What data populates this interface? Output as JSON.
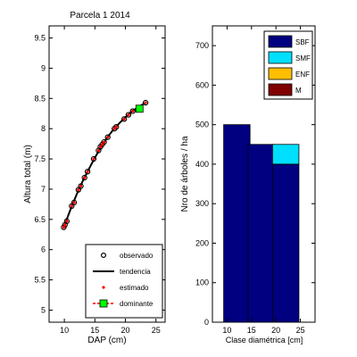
{
  "chart_data": [
    {
      "type": "scatter",
      "title": "Parcela 1 2014",
      "xlabel": "DAP (cm)",
      "ylabel": "Altura total (m)",
      "xlim": [
        7.5,
        26.5
      ],
      "ylim": [
        4.8,
        9.7
      ],
      "xticks": [
        10,
        15,
        20,
        25
      ],
      "yticks": [
        5,
        5.5,
        6,
        6.5,
        7,
        7.5,
        8,
        8.5,
        9,
        9.5
      ],
      "grid": false,
      "legend_position": "bottom-right",
      "legend": {
        "observado": "observado",
        "tendencia": "tendencia",
        "estimado": "estimado",
        "dominante": "dominante"
      },
      "colors": {
        "observed": "#000000",
        "trend": "#000000",
        "estimated": "#ff0000",
        "dominant": "#00ff00",
        "dominant_line": "#ff0000"
      },
      "series": [
        {
          "name": "observado",
          "points": [
            [
              9.9,
              6.37
            ],
            [
              10.1,
              6.41
            ],
            [
              10.4,
              6.47
            ],
            [
              11.2,
              6.72
            ],
            [
              11.6,
              6.78
            ],
            [
              12.3,
              6.99
            ],
            [
              12.7,
              7.05
            ],
            [
              13.3,
              7.19
            ],
            [
              13.8,
              7.29
            ],
            [
              14.8,
              7.5
            ],
            [
              15.6,
              7.64
            ],
            [
              15.9,
              7.7
            ],
            [
              16.2,
              7.74
            ],
            [
              16.5,
              7.78
            ],
            [
              17.1,
              7.86
            ],
            [
              18.2,
              8.0
            ],
            [
              18.5,
              8.03
            ],
            [
              19.8,
              8.16
            ],
            [
              20.5,
              8.23
            ],
            [
              21.2,
              8.29
            ],
            [
              23.3,
              8.43
            ]
          ]
        },
        {
          "name": "tendencia",
          "points": [
            [
              9.9,
              6.37
            ],
            [
              11,
              6.66
            ],
            [
              12,
              6.91
            ],
            [
              13,
              7.13
            ],
            [
              14,
              7.33
            ],
            [
              15,
              7.52
            ],
            [
              16,
              7.7
            ],
            [
              17,
              7.85
            ],
            [
              18,
              7.98
            ],
            [
              19,
              8.09
            ],
            [
              20,
              8.19
            ],
            [
              21,
              8.28
            ],
            [
              22,
              8.35
            ],
            [
              23.3,
              8.43
            ]
          ]
        },
        {
          "name": "estimado",
          "points": [
            [
              9.9,
              6.37
            ],
            [
              10.1,
              6.41
            ],
            [
              10.4,
              6.47
            ],
            [
              11.2,
              6.72
            ],
            [
              11.6,
              6.78
            ],
            [
              12.3,
              6.99
            ],
            [
              12.7,
              7.05
            ],
            [
              13.3,
              7.19
            ],
            [
              13.8,
              7.29
            ],
            [
              14.8,
              7.5
            ],
            [
              15.6,
              7.64
            ],
            [
              15.9,
              7.7
            ],
            [
              16.2,
              7.74
            ],
            [
              16.5,
              7.78
            ],
            [
              17.1,
              7.86
            ],
            [
              18.2,
              8.0
            ],
            [
              18.5,
              8.03
            ],
            [
              19.8,
              8.16
            ],
            [
              20.5,
              8.23
            ],
            [
              21.2,
              8.29
            ],
            [
              23.3,
              8.43
            ]
          ]
        },
        {
          "name": "dominante",
          "points": [
            [
              22.3,
              8.33
            ]
          ]
        }
      ]
    },
    {
      "type": "bar",
      "stacked": true,
      "xlabel": "Clase diamétrica [cm]",
      "ylabel": "Nro de árboles / ha",
      "xlim": [
        7,
        28
      ],
      "ylim": [
        0,
        750
      ],
      "xticks": [
        10,
        15,
        20,
        25
      ],
      "yticks": [
        0,
        100,
        200,
        300,
        400,
        500,
        600,
        700
      ],
      "grid": false,
      "legend_position": "top-right",
      "categories": [
        12,
        17,
        22
      ],
      "series": [
        {
          "name": "SBF",
          "color": "#000080",
          "values": [
            500,
            450,
            400
          ]
        },
        {
          "name": "SMF",
          "color": "#00dfff",
          "values": [
            0,
            0,
            50
          ]
        },
        {
          "name": "ENF",
          "color": "#ffbf00",
          "values": [
            0,
            0,
            0
          ]
        },
        {
          "name": "M",
          "color": "#800000",
          "values": [
            0,
            0,
            0
          ]
        }
      ]
    }
  ]
}
